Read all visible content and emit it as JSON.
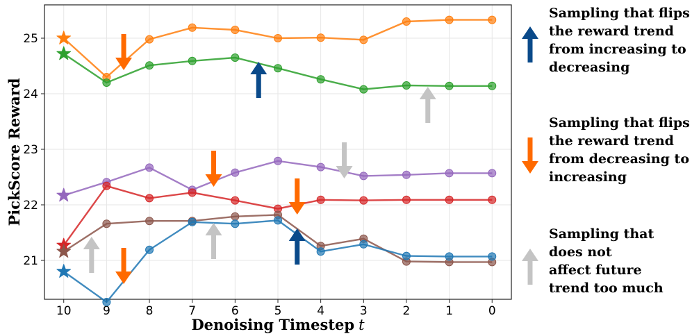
{
  "chart_data": {
    "type": "line",
    "xlabel_main": "Denoising Timestep",
    "xlabel_var": "t",
    "ylabel": "PickScore Reward",
    "x_ticks": [
      "10",
      "9",
      "8",
      "7",
      "6",
      "5",
      "4",
      "3",
      "2",
      "1",
      "0"
    ],
    "y_ticks": [
      "21",
      "22",
      "23",
      "24",
      "25"
    ],
    "xlim": [
      10.45,
      -0.45
    ],
    "ylim": [
      20.3,
      25.6
    ],
    "grid": true,
    "series": [
      {
        "name": "orange",
        "color": "#ff7f0e",
        "start": 25.0,
        "x": [
          9,
          8,
          7,
          6,
          5,
          4,
          3,
          2,
          1,
          0
        ],
        "values": [
          24.3,
          24.98,
          25.19,
          25.15,
          25.0,
          25.01,
          24.97,
          25.3,
          25.33,
          25.33
        ]
      },
      {
        "name": "green",
        "color": "#2ca02c",
        "start": 24.72,
        "x": [
          9,
          8,
          7,
          6,
          5,
          4,
          3,
          2,
          1,
          0
        ],
        "values": [
          24.2,
          24.51,
          24.59,
          24.65,
          24.46,
          24.26,
          24.08,
          24.15,
          24.14,
          24.14
        ]
      },
      {
        "name": "purple",
        "color": "#9467bd",
        "start": 22.17,
        "x": [
          9,
          8,
          7,
          6,
          5,
          4,
          3,
          2,
          1,
          0
        ],
        "values": [
          22.41,
          22.67,
          22.27,
          22.58,
          22.79,
          22.68,
          22.52,
          22.54,
          22.57,
          22.57
        ]
      },
      {
        "name": "red",
        "color": "#d62728",
        "start": 21.27,
        "x": [
          9,
          8,
          7,
          6,
          5,
          4,
          3,
          2,
          1,
          0
        ],
        "values": [
          22.34,
          22.12,
          22.22,
          22.08,
          21.93,
          22.09,
          22.08,
          22.09,
          22.09,
          22.09
        ]
      },
      {
        "name": "brown",
        "color": "#8c564b",
        "start": 21.16,
        "x": [
          9,
          8,
          7,
          6,
          5,
          4,
          3,
          2,
          1,
          0
        ],
        "values": [
          21.66,
          21.71,
          21.71,
          21.79,
          21.82,
          21.26,
          21.39,
          20.98,
          20.97,
          20.97
        ]
      },
      {
        "name": "blue",
        "color": "#1f77b4",
        "start": 20.8,
        "x": [
          9,
          8,
          7,
          6,
          5,
          4,
          3,
          2,
          1,
          0
        ],
        "values": [
          20.25,
          21.19,
          21.69,
          21.66,
          21.72,
          21.16,
          21.29,
          21.08,
          21.07,
          21.07
        ]
      }
    ],
    "annotations": [
      {
        "type": "down",
        "kind": "flip-to-increasing",
        "x": 8.6,
        "y": 24.75
      },
      {
        "type": "up",
        "kind": "flip-to-decreasing",
        "x": 5.45,
        "y": 24.25
      },
      {
        "type": "up",
        "kind": "no-effect",
        "x": 1.5,
        "y": 23.8
      },
      {
        "type": "down",
        "kind": "flip-to-increasing",
        "x": 6.5,
        "y": 22.65
      },
      {
        "type": "down",
        "kind": "no-effect",
        "x": 3.45,
        "y": 22.8
      },
      {
        "type": "down",
        "kind": "flip-to-increasing",
        "x": 4.55,
        "y": 22.15
      },
      {
        "type": "up",
        "kind": "no-effect",
        "x": 9.35,
        "y": 21.1
      },
      {
        "type": "down",
        "kind": "flip-to-increasing",
        "x": 8.6,
        "y": 20.9
      },
      {
        "type": "up",
        "kind": "no-effect",
        "x": 6.5,
        "y": 21.35
      },
      {
        "type": "up",
        "kind": "flip-to-decreasing",
        "x": 4.55,
        "y": 21.25
      }
    ],
    "arrow_colors": {
      "flip-to-decreasing": "#0a4a8a",
      "flip-to-increasing": "#ff6a00",
      "no-effect": "#c4c4c4"
    }
  },
  "legend": [
    {
      "kind": "flip-to-decreasing",
      "direction": "up",
      "text": "Sampling that flips\nthe reward trend\nfrom increasing to\ndecreasing"
    },
    {
      "kind": "flip-to-increasing",
      "direction": "down",
      "text": "Sampling that flips\nthe reward trend\nfrom decreasing to\nincreasing"
    },
    {
      "kind": "no-effect",
      "direction": "up",
      "text": "Sampling that\ndoes not\naffect future\ntrend too much"
    }
  ]
}
